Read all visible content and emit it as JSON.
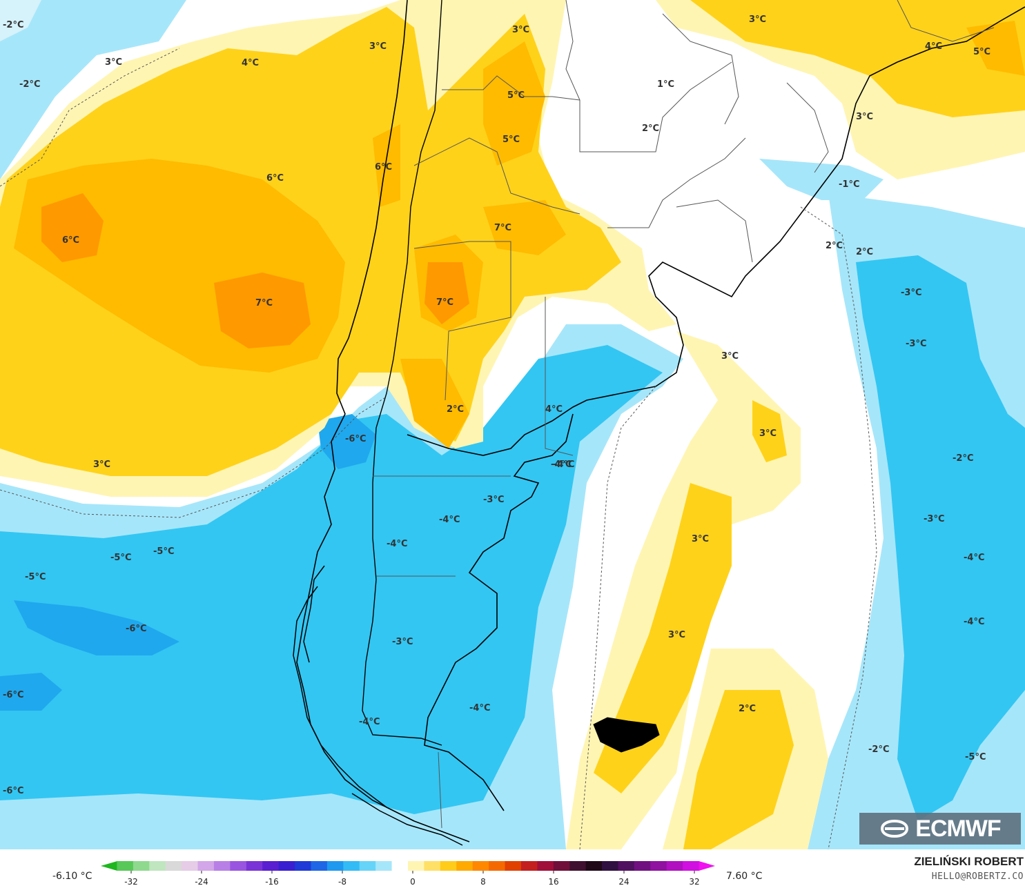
{
  "map": {
    "labels": [
      {
        "text": "-2°C"
      },
      {
        "text": "-2°C"
      },
      {
        "text": "3°C"
      },
      {
        "text": "4°C"
      },
      {
        "text": "3°C"
      },
      {
        "text": "3°C"
      },
      {
        "text": "5°C"
      },
      {
        "text": "5°C"
      },
      {
        "text": "6°C"
      },
      {
        "text": "6°C"
      },
      {
        "text": "6°C"
      },
      {
        "text": "7°C"
      },
      {
        "text": "7°C"
      },
      {
        "text": "7°C"
      },
      {
        "text": "3°C"
      },
      {
        "text": "1°C"
      },
      {
        "text": "2°C"
      },
      {
        "text": "3°C"
      },
      {
        "text": "4°C"
      },
      {
        "text": "5°C"
      },
      {
        "text": "3°C"
      },
      {
        "text": "-1°C"
      },
      {
        "text": "2°C"
      },
      {
        "text": "2°C"
      },
      {
        "text": "-3°C"
      },
      {
        "text": "-3°C"
      },
      {
        "text": "3°C"
      },
      {
        "text": "2°C"
      },
      {
        "text": "4°C"
      },
      {
        "text": "-4°C"
      },
      {
        "text": "-6°C"
      },
      {
        "text": "-4°C"
      },
      {
        "text": "-3°C"
      },
      {
        "text": "-4°C"
      },
      {
        "text": "-4°C"
      },
      {
        "text": "-5°C"
      },
      {
        "text": "-5°C"
      },
      {
        "text": "-5°C"
      },
      {
        "text": "-6°C"
      },
      {
        "text": "-6°C"
      },
      {
        "text": "-3°C"
      },
      {
        "text": "-4°C"
      },
      {
        "text": "-4°C"
      },
      {
        "text": "-6°C"
      },
      {
        "text": "3°C"
      },
      {
        "text": "3°C"
      },
      {
        "text": "3°C"
      },
      {
        "text": "2°C"
      },
      {
        "text": "-2°C"
      },
      {
        "text": "-3°C"
      },
      {
        "text": "-4°C"
      },
      {
        "text": "-4°C"
      },
      {
        "text": "-2°C"
      },
      {
        "text": "-5°C"
      }
    ]
  },
  "logo": {
    "text": "ECMWF",
    "icon": "ecmwf-logo-icon"
  },
  "legend": {
    "min_label": "-6.10 °C",
    "max_label": "7.60 °C",
    "ticks": [
      "-32",
      "-24",
      "-16",
      "-8",
      "0",
      "8",
      "16",
      "24",
      "32"
    ],
    "colors": [
      "#1fb61f",
      "#58c858",
      "#8fd98f",
      "#bfe6bf",
      "#d9d9d9",
      "#e6cce6",
      "#d2a6e8",
      "#b880e6",
      "#9a55e0",
      "#7a33d6",
      "#5a1fd0",
      "#3a1fd0",
      "#1f3ad6",
      "#1f66e6",
      "#1f99f0",
      "#33bbf5",
      "#66d4f8",
      "#a6e6fa",
      "#ffffff",
      "#fff5b3",
      "#ffe066",
      "#ffcc1a",
      "#ffaa00",
      "#ff8800",
      "#f56a00",
      "#e04000",
      "#c41f1f",
      "#a00f3a",
      "#700f3a",
      "#401030",
      "#200818",
      "#301040",
      "#501060",
      "#701080",
      "#9010a0",
      "#b010c0",
      "#d010e0",
      "#f010f0"
    ]
  },
  "credit": {
    "name": "ZIELIŃSKI ROBERT",
    "email": "HELLO@ROBERTZ.CO"
  },
  "colors": {
    "warm_light": "#fff5b3",
    "warm_yellow": "#ffd21a",
    "warm_gold": "#ffbb00",
    "warm_orange": "#ff9900",
    "warm_deep": "#f57d00",
    "neutral": "#ffffff",
    "cold_pale": "#d6f2fb",
    "cold_light": "#a6e6fa",
    "cold_cyan": "#33c6f2",
    "cold_deep": "#1fa8ee"
  }
}
